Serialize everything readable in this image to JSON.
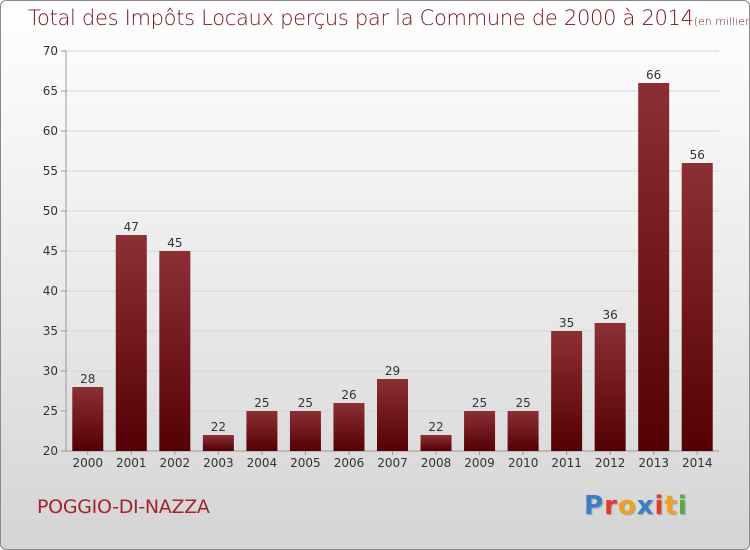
{
  "title": {
    "main": "Total des Impôts Locaux perçus par la Commune de 2000 à 2014",
    "unit": "(en milliers d'€)"
  },
  "commune_name": "POGGIO-DI-NAZZA",
  "brand": {
    "letters": [
      {
        "ch": "P",
        "color": "#3a7fc4"
      },
      {
        "ch": "r",
        "color": "#e2392b"
      },
      {
        "ch": "o",
        "color": "#f0a020"
      },
      {
        "ch": "x",
        "color": "#3a7fc4"
      },
      {
        "ch": "i",
        "color": "#e2392b"
      },
      {
        "ch": "t",
        "color": "#f0a020"
      },
      {
        "ch": "i",
        "color": "#5aaa3c"
      }
    ]
  },
  "colors": {
    "bar_top": "#8c3036",
    "bar_bottom": "#540004",
    "grid": "#d6d6d6",
    "axis": "#999999"
  },
  "chart_data": {
    "type": "bar",
    "title": "Total des Impôts Locaux perçus par la Commune de 2000 à 2014",
    "xlabel": "",
    "ylabel": "(en milliers d'€)",
    "categories": [
      "2000",
      "2001",
      "2002",
      "2003",
      "2004",
      "2005",
      "2006",
      "2007",
      "2008",
      "2009",
      "2010",
      "2011",
      "2012",
      "2013",
      "2014"
    ],
    "values": [
      28,
      47,
      45,
      22,
      25,
      25,
      26,
      29,
      22,
      25,
      25,
      35,
      36,
      66,
      56
    ],
    "ylim": [
      20,
      70
    ],
    "yticks": [
      20,
      25,
      30,
      35,
      40,
      45,
      50,
      55,
      60,
      65,
      70
    ],
    "grid": true,
    "data_labels": true
  }
}
